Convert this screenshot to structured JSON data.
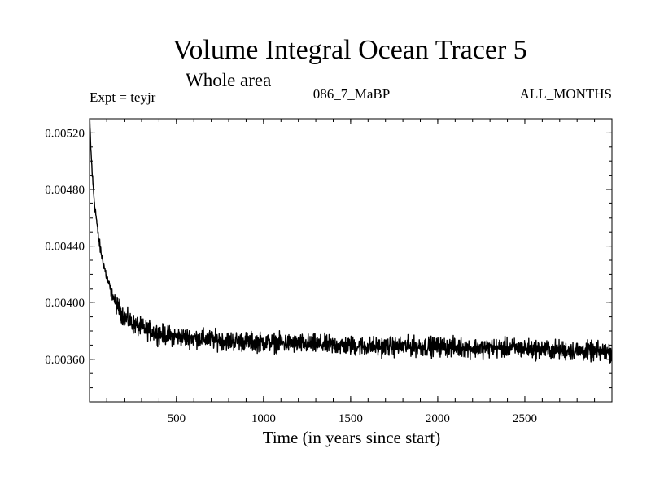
{
  "colors": {
    "background": "#ffffff",
    "foreground": "#000000"
  },
  "chart_data": {
    "type": "line",
    "title": "Volume Integral Ocean Tracer 5",
    "subtitle": "Whole area",
    "experiment": "Expt = teyjr",
    "run_label": "086_7_MaBP",
    "months_label": "ALL_MONTHS",
    "xlabel": "Time (in years since start)",
    "ylabel": "",
    "xlim": [
      1,
      3000
    ],
    "ylim": [
      0.0033,
      0.0053
    ],
    "x_ticks": [
      500,
      1000,
      1500,
      2000,
      2500
    ],
    "x_tick_labels": [
      "500",
      "1000",
      "1500",
      "2000",
      "2500"
    ],
    "y_ticks": [
      0.0036,
      0.004,
      0.0044,
      0.0048,
      0.0052
    ],
    "y_tick_labels": [
      "0.00360",
      "0.00400",
      "0.00440",
      "0.00480",
      "0.00520"
    ],
    "grid": false,
    "legend": "none",
    "series": [
      {
        "x": [
          1,
          5,
          10,
          20,
          30,
          40,
          50,
          60,
          80,
          100,
          125,
          150,
          200,
          250,
          300,
          400,
          500,
          600,
          700,
          800,
          1000,
          1200,
          1400,
          1600,
          1800,
          2000,
          2200,
          2400,
          2600,
          2800,
          3000
        ],
        "values": [
          0.0053,
          0.0052,
          0.00505,
          0.00485,
          0.0047,
          0.0046,
          0.00448,
          0.0044,
          0.00428,
          0.00418,
          0.00408,
          0.004,
          0.0039,
          0.00385,
          0.00382,
          0.00378,
          0.00376,
          0.00375,
          0.00374,
          0.00373,
          0.00372,
          0.00371,
          0.0037,
          0.00369,
          0.00369,
          0.00369,
          0.00368,
          0.00368,
          0.00367,
          0.00366,
          0.00365
        ],
        "noise_amplitude": 0.0001
      }
    ]
  }
}
